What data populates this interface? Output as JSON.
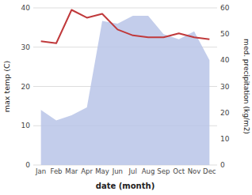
{
  "chart_data": {
    "type": "line",
    "categories": [
      "Jan",
      "Feb",
      "Mar",
      "Apr",
      "May",
      "Jun",
      "Jul",
      "Aug",
      "Sep",
      "Oct",
      "Nov",
      "Dec"
    ],
    "series": [
      {
        "type": "area",
        "color": "#b8c4e8",
        "axis": "y2",
        "values": [
          21,
          17,
          19,
          22,
          55,
          54,
          57,
          57,
          50,
          48,
          51,
          40
        ]
      },
      {
        "type": "line",
        "color": "#c0393b",
        "values": [
          31.5,
          31.0,
          39.5,
          37.5,
          38.5,
          34.5,
          33.0,
          32.5,
          32.5,
          33.5,
          32.5,
          32.0
        ]
      }
    ],
    "ylim": [
      0,
      40
    ],
    "yticks": [
      0,
      10,
      20,
      30,
      40
    ],
    "y2lim": [
      0,
      60
    ],
    "y2ticks": [
      0,
      10,
      20,
      30,
      40,
      50,
      60
    ],
    "ylabel": "max temp (C)",
    "y2label": "med. precipitation (kg/m2)",
    "xlabel": "date (month)",
    "grid": true
  }
}
